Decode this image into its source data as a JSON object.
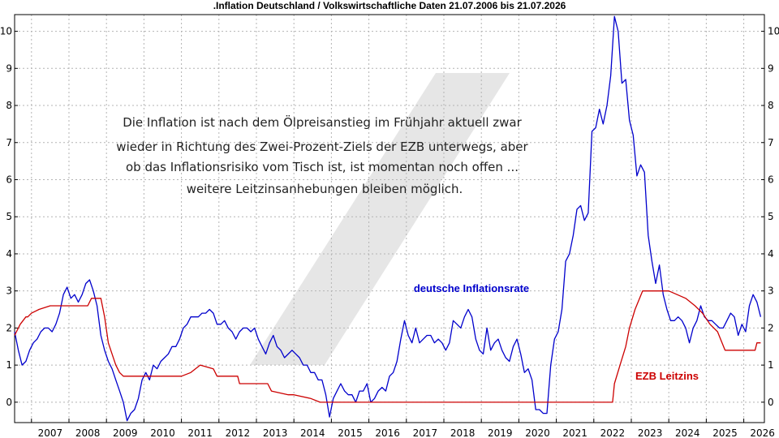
{
  "chart_data": {
    "type": "line",
    "title": ".Inflation Deutschland / Volkswirtschaftliche Daten 21.07.2006 bis 21.07.2026",
    "xlim": [
      2006.55,
      2026.55
    ],
    "ylim": [
      -0.55,
      10.45
    ],
    "y_ticks": [
      0,
      1,
      2,
      3,
      4,
      5,
      6,
      7,
      8,
      9,
      10
    ],
    "x_ticks": [
      "2007",
      "2008",
      "2009",
      "2010",
      "2011",
      "2012",
      "2013",
      "2014",
      "2015",
      "2016",
      "2017",
      "2018",
      "2019",
      "2020",
      "2021",
      "2022",
      "2023",
      "2024",
      "2025",
      "2026"
    ],
    "grid": true,
    "annotation_lines": [
      "Die Inflation ist nach dem Ölpreisanstieg im Frühjahr aktuell zwar",
      "wieder in Richtung des Zwei-Prozent-Ziels der EZB unterwegs, aber",
      "ob das Inflationsrisiko vom Tisch ist, ist momentan noch offen ...",
      "weitere Leitzinsanhebungen bleiben möglich."
    ],
    "series": [
      {
        "name": "deutsche Inflationsrate",
        "color": "#0000cc",
        "points": [
          [
            2006.55,
            1.9
          ],
          [
            2006.65,
            1.4
          ],
          [
            2006.75,
            1.0
          ],
          [
            2006.85,
            1.1
          ],
          [
            2006.95,
            1.4
          ],
          [
            2007.05,
            1.6
          ],
          [
            2007.15,
            1.7
          ],
          [
            2007.25,
            1.9
          ],
          [
            2007.35,
            2.0
          ],
          [
            2007.45,
            2.0
          ],
          [
            2007.55,
            1.9
          ],
          [
            2007.65,
            2.1
          ],
          [
            2007.75,
            2.4
          ],
          [
            2007.85,
            2.9
          ],
          [
            2007.95,
            3.1
          ],
          [
            2008.05,
            2.8
          ],
          [
            2008.15,
            2.9
          ],
          [
            2008.25,
            2.7
          ],
          [
            2008.35,
            2.9
          ],
          [
            2008.45,
            3.2
          ],
          [
            2008.55,
            3.3
          ],
          [
            2008.65,
            3.0
          ],
          [
            2008.75,
            2.6
          ],
          [
            2008.85,
            1.8
          ],
          [
            2008.95,
            1.4
          ],
          [
            2009.05,
            1.1
          ],
          [
            2009.15,
            0.9
          ],
          [
            2009.25,
            0.6
          ],
          [
            2009.35,
            0.3
          ],
          [
            2009.45,
            0.0
          ],
          [
            2009.55,
            -0.5
          ],
          [
            2009.65,
            -0.3
          ],
          [
            2009.75,
            -0.2
          ],
          [
            2009.85,
            0.1
          ],
          [
            2009.95,
            0.6
          ],
          [
            2010.05,
            0.8
          ],
          [
            2010.15,
            0.6
          ],
          [
            2010.25,
            1.0
          ],
          [
            2010.35,
            0.9
          ],
          [
            2010.45,
            1.1
          ],
          [
            2010.55,
            1.2
          ],
          [
            2010.65,
            1.3
          ],
          [
            2010.75,
            1.5
          ],
          [
            2010.85,
            1.5
          ],
          [
            2010.95,
            1.7
          ],
          [
            2011.05,
            2.0
          ],
          [
            2011.15,
            2.1
          ],
          [
            2011.25,
            2.3
          ],
          [
            2011.35,
            2.3
          ],
          [
            2011.45,
            2.3
          ],
          [
            2011.55,
            2.4
          ],
          [
            2011.65,
            2.4
          ],
          [
            2011.75,
            2.5
          ],
          [
            2011.85,
            2.4
          ],
          [
            2011.95,
            2.1
          ],
          [
            2012.05,
            2.1
          ],
          [
            2012.15,
            2.2
          ],
          [
            2012.25,
            2.0
          ],
          [
            2012.35,
            1.9
          ],
          [
            2012.45,
            1.7
          ],
          [
            2012.55,
            1.9
          ],
          [
            2012.65,
            2.0
          ],
          [
            2012.75,
            2.0
          ],
          [
            2012.85,
            1.9
          ],
          [
            2012.95,
            2.0
          ],
          [
            2013.05,
            1.7
          ],
          [
            2013.15,
            1.5
          ],
          [
            2013.25,
            1.3
          ],
          [
            2013.35,
            1.6
          ],
          [
            2013.45,
            1.8
          ],
          [
            2013.55,
            1.5
          ],
          [
            2013.65,
            1.4
          ],
          [
            2013.75,
            1.2
          ],
          [
            2013.85,
            1.3
          ],
          [
            2013.95,
            1.4
          ],
          [
            2014.05,
            1.3
          ],
          [
            2014.15,
            1.2
          ],
          [
            2014.25,
            1.0
          ],
          [
            2014.35,
            1.0
          ],
          [
            2014.45,
            0.8
          ],
          [
            2014.55,
            0.8
          ],
          [
            2014.65,
            0.6
          ],
          [
            2014.75,
            0.6
          ],
          [
            2014.85,
            0.2
          ],
          [
            2014.95,
            -0.4
          ],
          [
            2015.05,
            0.1
          ],
          [
            2015.15,
            0.3
          ],
          [
            2015.25,
            0.5
          ],
          [
            2015.35,
            0.3
          ],
          [
            2015.45,
            0.2
          ],
          [
            2015.55,
            0.2
          ],
          [
            2015.65,
            0.0
          ],
          [
            2015.75,
            0.3
          ],
          [
            2015.85,
            0.3
          ],
          [
            2015.95,
            0.5
          ],
          [
            2016.05,
            0.0
          ],
          [
            2016.15,
            0.1
          ],
          [
            2016.25,
            0.3
          ],
          [
            2016.35,
            0.4
          ],
          [
            2016.45,
            0.3
          ],
          [
            2016.55,
            0.7
          ],
          [
            2016.65,
            0.8
          ],
          [
            2016.75,
            1.1
          ],
          [
            2016.85,
            1.7
          ],
          [
            2016.95,
            2.2
          ],
          [
            2017.05,
            1.8
          ],
          [
            2017.15,
            1.6
          ],
          [
            2017.25,
            2.0
          ],
          [
            2017.35,
            1.6
          ],
          [
            2017.45,
            1.7
          ],
          [
            2017.55,
            1.8
          ],
          [
            2017.65,
            1.8
          ],
          [
            2017.75,
            1.6
          ],
          [
            2017.85,
            1.7
          ],
          [
            2017.95,
            1.6
          ],
          [
            2018.05,
            1.4
          ],
          [
            2018.15,
            1.6
          ],
          [
            2018.25,
            2.2
          ],
          [
            2018.35,
            2.1
          ],
          [
            2018.45,
            2.0
          ],
          [
            2018.55,
            2.3
          ],
          [
            2018.65,
            2.5
          ],
          [
            2018.75,
            2.3
          ],
          [
            2018.85,
            1.7
          ],
          [
            2018.95,
            1.4
          ],
          [
            2019.05,
            1.3
          ],
          [
            2019.15,
            2.0
          ],
          [
            2019.25,
            1.4
          ],
          [
            2019.35,
            1.6
          ],
          [
            2019.45,
            1.7
          ],
          [
            2019.55,
            1.4
          ],
          [
            2019.65,
            1.2
          ],
          [
            2019.75,
            1.1
          ],
          [
            2019.85,
            1.5
          ],
          [
            2019.95,
            1.7
          ],
          [
            2020.05,
            1.3
          ],
          [
            2020.15,
            0.8
          ],
          [
            2020.25,
            0.9
          ],
          [
            2020.35,
            0.6
          ],
          [
            2020.45,
            -0.2
          ],
          [
            2020.55,
            -0.2
          ],
          [
            2020.65,
            -0.3
          ],
          [
            2020.75,
            -0.3
          ],
          [
            2020.85,
            1.0
          ],
          [
            2020.95,
            1.7
          ],
          [
            2021.05,
            1.9
          ],
          [
            2021.15,
            2.5
          ],
          [
            2021.25,
            3.8
          ],
          [
            2021.35,
            4.0
          ],
          [
            2021.45,
            4.5
          ],
          [
            2021.55,
            5.2
          ],
          [
            2021.65,
            5.3
          ],
          [
            2021.75,
            4.9
          ],
          [
            2021.85,
            5.1
          ],
          [
            2021.95,
            7.3
          ],
          [
            2022.05,
            7.4
          ],
          [
            2022.15,
            7.9
          ],
          [
            2022.25,
            7.5
          ],
          [
            2022.35,
            8.0
          ],
          [
            2022.45,
            8.8
          ],
          [
            2022.55,
            10.4
          ],
          [
            2022.65,
            10.0
          ],
          [
            2022.75,
            8.6
          ],
          [
            2022.85,
            8.7
          ],
          [
            2022.95,
            7.6
          ],
          [
            2023.05,
            7.2
          ],
          [
            2023.15,
            6.1
          ],
          [
            2023.25,
            6.4
          ],
          [
            2023.35,
            6.2
          ],
          [
            2023.45,
            4.5
          ],
          [
            2023.55,
            3.8
          ],
          [
            2023.65,
            3.2
          ],
          [
            2023.75,
            3.7
          ],
          [
            2023.85,
            2.9
          ],
          [
            2023.95,
            2.5
          ],
          [
            2024.05,
            2.2
          ],
          [
            2024.15,
            2.2
          ],
          [
            2024.25,
            2.3
          ],
          [
            2024.35,
            2.2
          ],
          [
            2024.45,
            2.0
          ],
          [
            2024.55,
            1.6
          ],
          [
            2024.65,
            2.0
          ],
          [
            2024.75,
            2.2
          ],
          [
            2024.85,
            2.6
          ],
          [
            2024.95,
            2.3
          ],
          [
            2025.05,
            2.2
          ],
          [
            2025.15,
            2.2
          ],
          [
            2025.25,
            2.1
          ],
          [
            2025.35,
            2.0
          ],
          [
            2025.45,
            2.0
          ],
          [
            2025.55,
            2.2
          ],
          [
            2025.65,
            2.4
          ],
          [
            2025.75,
            2.3
          ],
          [
            2025.85,
            1.8
          ],
          [
            2025.95,
            2.1
          ],
          [
            2026.05,
            1.9
          ],
          [
            2026.15,
            2.6
          ],
          [
            2026.25,
            2.9
          ],
          [
            2026.35,
            2.7
          ],
          [
            2026.45,
            2.3
          ]
        ]
      },
      {
        "name": "EZB Leitzins",
        "color": "#cc0000",
        "points": [
          [
            2006.55,
            1.8
          ],
          [
            2006.7,
            2.1
          ],
          [
            2006.85,
            2.3
          ],
          [
            2006.9,
            2.3
          ],
          [
            2007.0,
            2.4
          ],
          [
            2007.2,
            2.5
          ],
          [
            2007.5,
            2.6
          ],
          [
            2007.7,
            2.6
          ],
          [
            2008.0,
            2.6
          ],
          [
            2008.5,
            2.6
          ],
          [
            2008.6,
            2.8
          ],
          [
            2008.85,
            2.8
          ],
          [
            2008.95,
            2.3
          ],
          [
            2009.05,
            1.6
          ],
          [
            2009.15,
            1.3
          ],
          [
            2009.25,
            1.0
          ],
          [
            2009.35,
            0.8
          ],
          [
            2009.45,
            0.7
          ],
          [
            2010.0,
            0.7
          ],
          [
            2011.0,
            0.7
          ],
          [
            2011.25,
            0.8
          ],
          [
            2011.5,
            1.0
          ],
          [
            2011.85,
            0.9
          ],
          [
            2011.95,
            0.7
          ],
          [
            2012.5,
            0.7
          ],
          [
            2012.55,
            0.5
          ],
          [
            2013.0,
            0.5
          ],
          [
            2013.3,
            0.5
          ],
          [
            2013.4,
            0.3
          ],
          [
            2013.85,
            0.2
          ],
          [
            2014.0,
            0.2
          ],
          [
            2014.45,
            0.1
          ],
          [
            2014.7,
            0.0
          ],
          [
            2016.0,
            0.0
          ],
          [
            2020.0,
            0.0
          ],
          [
            2022.0,
            0.0
          ],
          [
            2022.5,
            0.0
          ],
          [
            2022.55,
            0.5
          ],
          [
            2022.7,
            1.0
          ],
          [
            2022.85,
            1.5
          ],
          [
            2022.95,
            2.0
          ],
          [
            2023.1,
            2.5
          ],
          [
            2023.3,
            3.0
          ],
          [
            2023.75,
            3.0
          ],
          [
            2024.0,
            3.0
          ],
          [
            2024.45,
            2.8
          ],
          [
            2024.7,
            2.6
          ],
          [
            2024.9,
            2.4
          ],
          [
            2025.1,
            2.1
          ],
          [
            2025.3,
            1.9
          ],
          [
            2025.5,
            1.4
          ],
          [
            2026.0,
            1.4
          ],
          [
            2026.3,
            1.4
          ],
          [
            2026.35,
            1.6
          ],
          [
            2026.45,
            1.6
          ]
        ]
      }
    ]
  }
}
